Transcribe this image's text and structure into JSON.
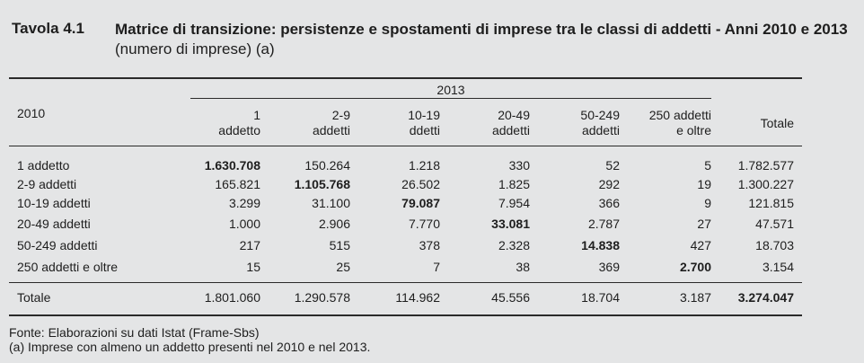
{
  "table_label": "Tavola 4.1",
  "title_main": "Matrice di transizione: persistenze e spostamenti di imprese tra le classi di addetti - Anni 2010 e 2013",
  "title_suffix": "(numero di imprese) (a)",
  "header": {
    "year_col": "2013",
    "row_head": "2010",
    "columns": [
      {
        "l1": "1",
        "l2": "addetto"
      },
      {
        "l1": "2-9",
        "l2": "addetti"
      },
      {
        "l1": "10-19",
        "l2": "ddetti"
      },
      {
        "l1": "20-49",
        "l2": "addetti"
      },
      {
        "l1": "50-249",
        "l2": "addetti"
      },
      {
        "l1": "250 addetti",
        "l2": "e oltre"
      }
    ],
    "total": "Totale"
  },
  "rows": [
    {
      "label": "1 addetto",
      "values": [
        "1.630.708",
        "150.264",
        "1.218",
        "330",
        "52",
        "5",
        "1.782.577"
      ]
    },
    {
      "label": "2-9 addetti",
      "values": [
        "165.821",
        "1.105.768",
        "26.502",
        "1.825",
        "292",
        "19",
        "1.300.227"
      ]
    },
    {
      "label": "10-19 addetti",
      "values": [
        "3.299",
        "31.100",
        "79.087",
        "7.954",
        "366",
        "9",
        "121.815"
      ]
    },
    {
      "label": "20-49 addetti",
      "values": [
        "1.000",
        "2.906",
        "7.770",
        "33.081",
        "2.787",
        "27",
        "47.571"
      ]
    },
    {
      "label": "50-249 addetti",
      "values": [
        "217",
        "515",
        "378",
        "2.328",
        "14.838",
        "427",
        "18.703"
      ]
    },
    {
      "label": "250 addetti e oltre",
      "values": [
        "15",
        "25",
        "7",
        "38",
        "369",
        "2.700",
        "3.154"
      ]
    }
  ],
  "total_row": {
    "label": "Totale",
    "values": [
      "1.801.060",
      "1.290.578",
      "114.962",
      "45.556",
      "18.704",
      "3.187",
      "3.274.047"
    ]
  },
  "notes": [
    "Fonte: Elaborazioni su dati Istat (Frame-Sbs)",
    "(a) Imprese con almeno un addetto presenti nel 2010 e nel 2013."
  ]
}
